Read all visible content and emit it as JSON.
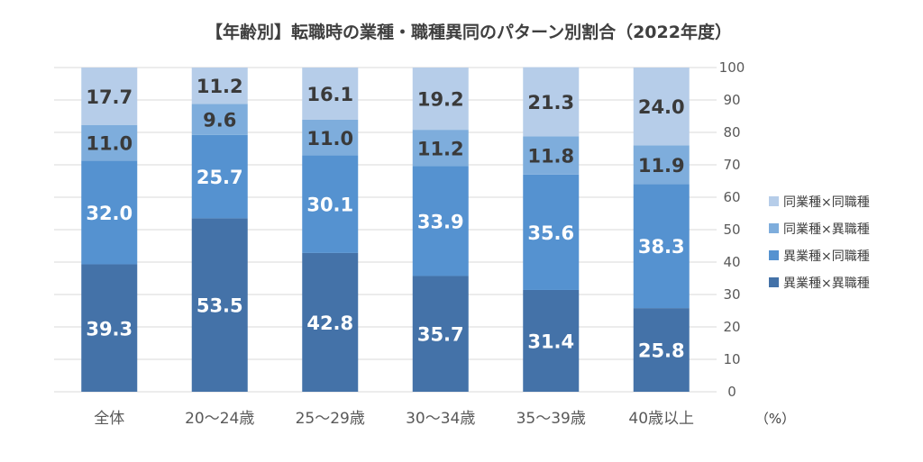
{
  "chart_data": {
    "type": "bar",
    "stacked": true,
    "title": "【年齢別】転職時の業種・職種異同のパターン別割合（2022年度）",
    "categories": [
      "全体",
      "20～24歳",
      "25～29歳",
      "30～34歳",
      "35～39歳",
      "40歳以上"
    ],
    "series": [
      {
        "name": "異業種×異職種",
        "color": "#4472a8",
        "values": [
          39.3,
          53.5,
          42.8,
          35.7,
          31.4,
          25.8
        ]
      },
      {
        "name": "異業種×同職種",
        "color": "#5592d0",
        "values": [
          32.0,
          25.7,
          30.1,
          33.9,
          35.6,
          38.3
        ]
      },
      {
        "name": "同業種×異職種",
        "color": "#7eaddc",
        "values": [
          11.0,
          9.6,
          11.0,
          11.2,
          11.8,
          11.9
        ]
      },
      {
        "name": "同業種×同職種",
        "color": "#b6cde9",
        "values": [
          17.7,
          11.2,
          16.1,
          19.2,
          21.3,
          24.0
        ]
      }
    ],
    "ylim": [
      0,
      100
    ],
    "yticks": [
      0,
      10,
      20,
      30,
      40,
      50,
      60,
      70,
      80,
      90,
      100
    ],
    "ylabel": "（%）",
    "xlabel": "",
    "grid": true,
    "legend_position": "right"
  }
}
